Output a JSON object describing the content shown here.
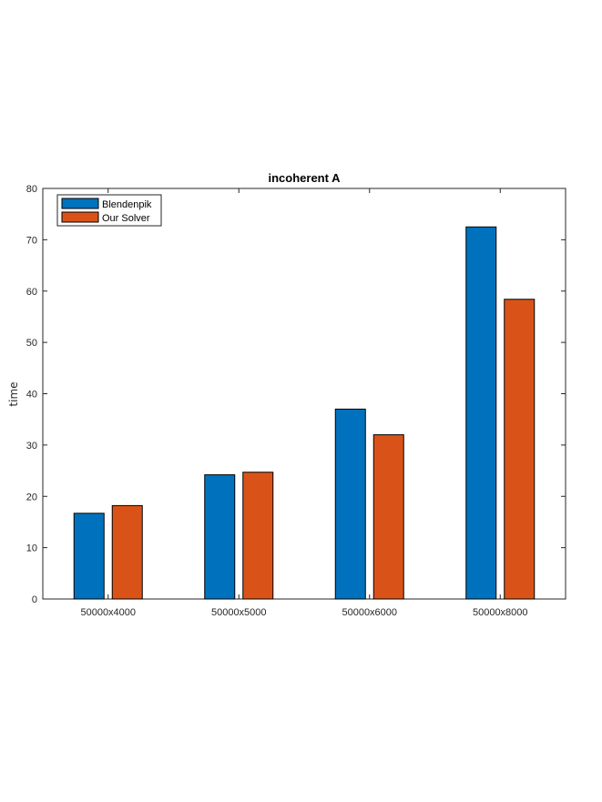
{
  "chart_data": {
    "type": "bar",
    "title": "incoherent A",
    "xlabel": "",
    "ylabel": "time",
    "categories": [
      "50000x4000",
      "50000x5000",
      "50000x6000",
      "50000x8000"
    ],
    "series": [
      {
        "name": "Blendenpik",
        "color": "#0072BD",
        "values": [
          16.7,
          24.2,
          37.0,
          72.5
        ]
      },
      {
        "name": "Our Solver",
        "color": "#D95319",
        "values": [
          18.2,
          24.7,
          32.0,
          58.4
        ]
      }
    ],
    "ylim": [
      0,
      80
    ],
    "yticks": [
      0,
      10,
      20,
      30,
      40,
      50,
      60,
      70,
      80
    ],
    "grid": false,
    "legend_position": "top-left"
  }
}
